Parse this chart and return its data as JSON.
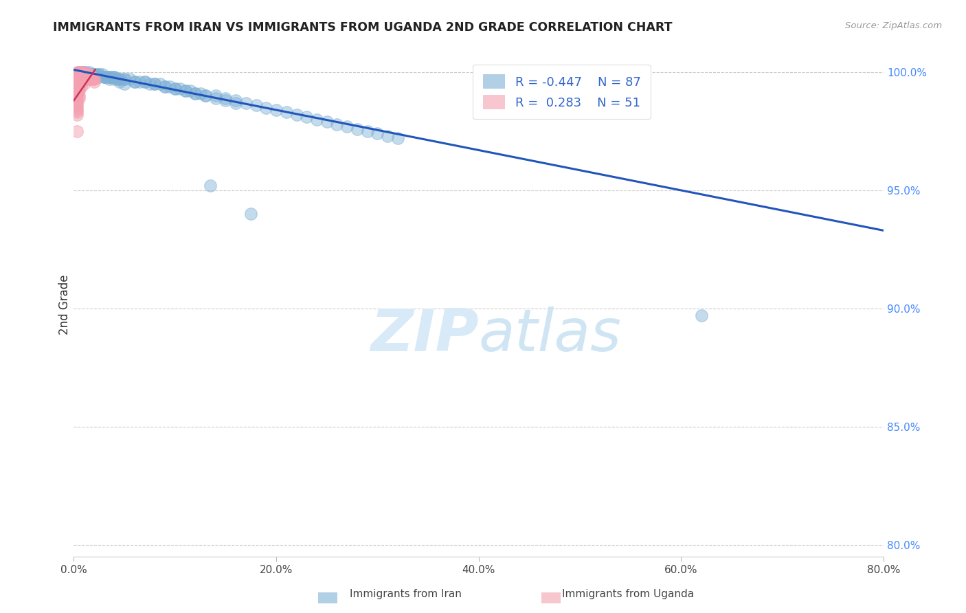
{
  "title": "IMMIGRANTS FROM IRAN VS IMMIGRANTS FROM UGANDA 2ND GRADE CORRELATION CHART",
  "source": "Source: ZipAtlas.com",
  "xlabel_ticks": [
    "0.0%",
    "20.0%",
    "40.0%",
    "60.0%",
    "80.0%"
  ],
  "ylabel_label": "2nd Grade",
  "ylabel_ticks": [
    "80.0%",
    "85.0%",
    "90.0%",
    "95.0%",
    "100.0%"
  ],
  "xlim": [
    0.0,
    0.8
  ],
  "ylim": [
    0.795,
    1.008
  ],
  "iran_R": -0.447,
  "iran_N": 87,
  "uganda_R": 0.283,
  "uganda_N": 51,
  "iran_color": "#7EB0D5",
  "uganda_color": "#F4A0B0",
  "trendline_iran_color": "#2255BB",
  "trendline_uganda_color": "#CC3355",
  "iran_scatter_x": [
    0.005,
    0.008,
    0.01,
    0.012,
    0.015,
    0.018,
    0.02,
    0.022,
    0.025,
    0.028,
    0.03,
    0.033,
    0.035,
    0.038,
    0.04,
    0.043,
    0.045,
    0.05,
    0.055,
    0.06,
    0.065,
    0.07,
    0.075,
    0.08,
    0.085,
    0.09,
    0.095,
    0.1,
    0.105,
    0.11,
    0.115,
    0.12,
    0.125,
    0.13,
    0.14,
    0.15,
    0.16,
    0.17,
    0.18,
    0.19,
    0.2,
    0.21,
    0.22,
    0.23,
    0.24,
    0.25,
    0.26,
    0.27,
    0.28,
    0.29,
    0.3,
    0.31,
    0.32,
    0.01,
    0.015,
    0.02,
    0.025,
    0.03,
    0.035,
    0.04,
    0.045,
    0.05,
    0.06,
    0.07,
    0.08,
    0.09,
    0.1,
    0.11,
    0.12,
    0.13,
    0.14,
    0.15,
    0.16,
    0.005,
    0.008,
    0.012,
    0.016,
    0.02,
    0.025,
    0.03,
    0.035,
    0.04,
    0.045,
    0.05,
    0.62,
    0.175,
    0.135
  ],
  "iran_scatter_y": [
    1.0,
    1.0,
    1.0,
    1.0,
    1.0,
    0.999,
    0.999,
    0.999,
    0.999,
    0.999,
    0.998,
    0.998,
    0.998,
    0.998,
    0.998,
    0.997,
    0.997,
    0.997,
    0.997,
    0.996,
    0.996,
    0.996,
    0.995,
    0.995,
    0.995,
    0.994,
    0.994,
    0.993,
    0.993,
    0.992,
    0.992,
    0.991,
    0.991,
    0.99,
    0.99,
    0.989,
    0.988,
    0.987,
    0.986,
    0.985,
    0.984,
    0.983,
    0.982,
    0.981,
    0.98,
    0.979,
    0.978,
    0.977,
    0.976,
    0.975,
    0.974,
    0.973,
    0.972,
    1.0,
    0.999,
    0.999,
    0.999,
    0.998,
    0.998,
    0.998,
    0.997,
    0.997,
    0.996,
    0.996,
    0.995,
    0.994,
    0.993,
    0.992,
    0.991,
    0.99,
    0.989,
    0.988,
    0.987,
    1.0,
    1.0,
    0.999,
    0.999,
    0.999,
    0.998,
    0.998,
    0.997,
    0.997,
    0.996,
    0.995,
    0.897,
    0.94,
    0.952
  ],
  "uganda_scatter_x": [
    0.003,
    0.005,
    0.007,
    0.008,
    0.01,
    0.01,
    0.012,
    0.012,
    0.013,
    0.015,
    0.015,
    0.015,
    0.017,
    0.018,
    0.018,
    0.02,
    0.02,
    0.02,
    0.008,
    0.01,
    0.012,
    0.014,
    0.015,
    0.005,
    0.007,
    0.008,
    0.003,
    0.005,
    0.007,
    0.008,
    0.01,
    0.003,
    0.005,
    0.007,
    0.003,
    0.005,
    0.003,
    0.005,
    0.003,
    0.003,
    0.005,
    0.003,
    0.005,
    0.003,
    0.003,
    0.003,
    0.003,
    0.003,
    0.003,
    0.003,
    0.003
  ],
  "uganda_scatter_y": [
    1.0,
    1.0,
    1.0,
    1.0,
    1.0,
    0.999,
    0.999,
    0.999,
    0.999,
    0.999,
    0.998,
    0.998,
    0.998,
    0.998,
    0.997,
    0.997,
    0.997,
    0.996,
    0.999,
    0.998,
    0.998,
    0.997,
    0.997,
    0.999,
    0.999,
    0.998,
    0.998,
    0.997,
    0.996,
    0.996,
    0.995,
    0.996,
    0.995,
    0.994,
    0.995,
    0.994,
    0.993,
    0.992,
    0.992,
    0.991,
    0.99,
    0.99,
    0.989,
    0.988,
    0.987,
    0.986,
    0.985,
    0.984,
    0.983,
    0.982,
    0.975
  ],
  "iran_trend_x": [
    0.0,
    0.8
  ],
  "iran_trend_y": [
    1.001,
    0.933
  ],
  "uganda_trend_x": [
    0.0,
    0.021
  ],
  "uganda_trend_y": [
    0.988,
    1.001
  ]
}
